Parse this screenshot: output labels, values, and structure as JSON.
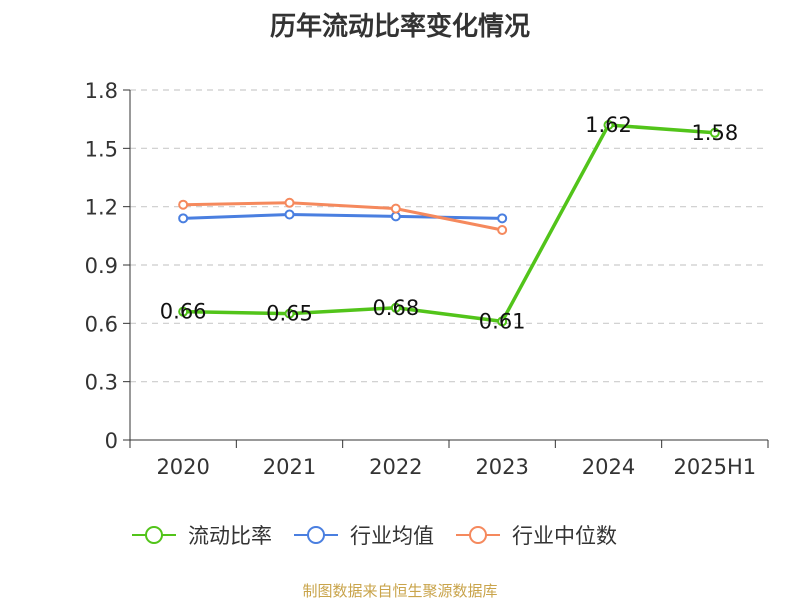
{
  "chart_data": {
    "type": "line",
    "title": "历年流动比率变化情况",
    "categories": [
      "2020",
      "2021",
      "2022",
      "2023",
      "2024",
      "2025H1"
    ],
    "series": [
      {
        "name": "流动比率",
        "color": "#52c41a",
        "values": [
          0.66,
          0.65,
          0.68,
          0.61,
          1.62,
          1.58
        ],
        "labels": [
          "0.66",
          "0.65",
          "0.68",
          "0.61",
          "1.62",
          "1.58"
        ]
      },
      {
        "name": "行业均值",
        "color": "#4a7fe0",
        "values": [
          1.14,
          1.16,
          1.15,
          1.14,
          null,
          null
        ]
      },
      {
        "name": "行业中位数",
        "color": "#f5895d",
        "values": [
          1.21,
          1.22,
          1.19,
          1.08,
          null,
          null
        ]
      }
    ],
    "yticks": [
      "0",
      "0.3",
      "0.6",
      "0.9",
      "1.2",
      "1.5",
      "1.8"
    ],
    "ylim": [
      0,
      1.8
    ],
    "grid": true,
    "legend_position": "bottom"
  },
  "source_note": "制图数据来自恒生聚源数据库"
}
